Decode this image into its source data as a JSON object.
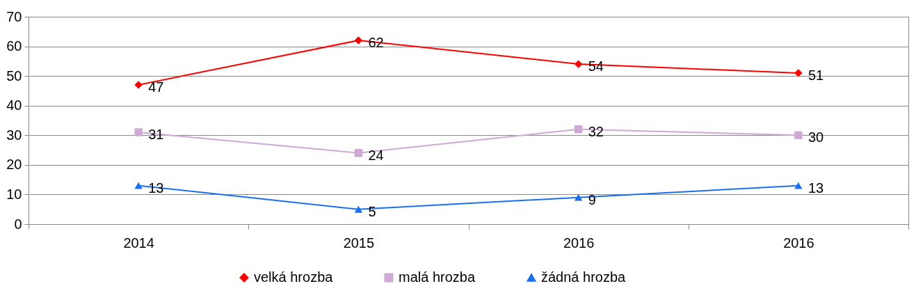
{
  "chart_data": {
    "type": "line",
    "categories": [
      "2014",
      "2015",
      "2016",
      "2016"
    ],
    "series": [
      {
        "name": "velká hrozba",
        "color": "#ff0000",
        "marker": "diamond",
        "values": [
          47,
          62,
          54,
          51
        ]
      },
      {
        "name": "malá hrozba",
        "color": "#ccaad4",
        "marker": "square",
        "values": [
          31,
          24,
          32,
          30
        ]
      },
      {
        "name": "žádná hrozba",
        "color": "#1a6ff0",
        "marker": "triangle",
        "values": [
          13,
          5,
          9,
          13
        ]
      }
    ],
    "ylim": [
      0,
      70
    ],
    "yticks": [
      0,
      10,
      20,
      30,
      40,
      50,
      60,
      70
    ],
    "grid": "y",
    "legend": "bottom",
    "data_labels": true,
    "line_style": "solid"
  }
}
